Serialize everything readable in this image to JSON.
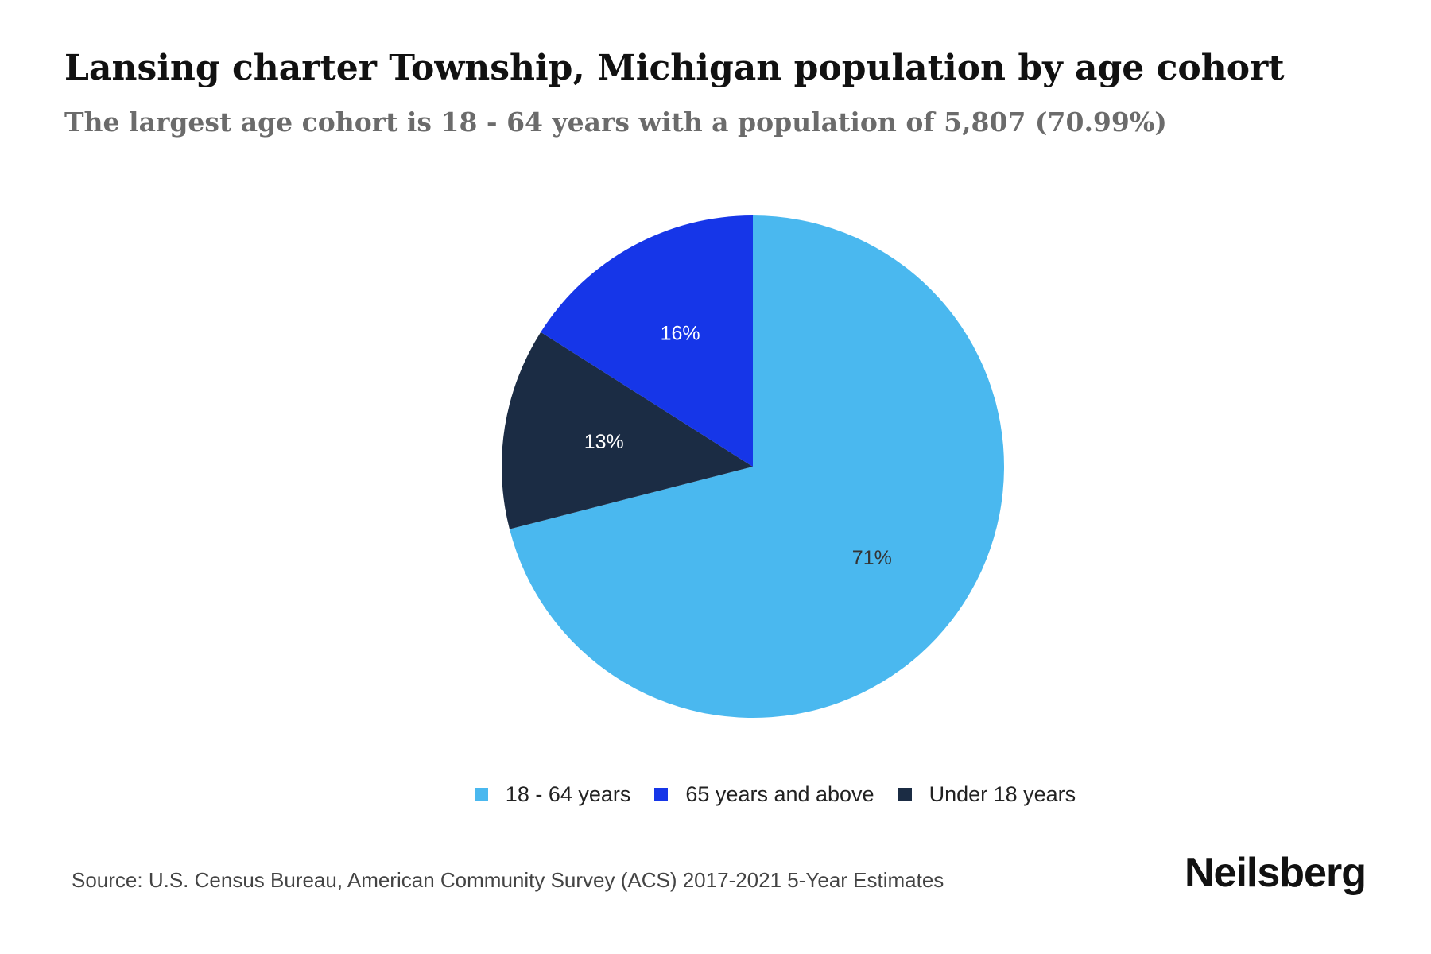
{
  "chart_data": {
    "type": "pie",
    "title": "Lansing charter Township, Michigan population by age cohort",
    "subtitle": "The largest age cohort is 18 - 64 years with a population of 5,807 (70.99%)",
    "slices": [
      {
        "label": "18 - 64 years",
        "value": 70.99,
        "display": "71%",
        "color": "#4ab8ef",
        "label_color": "#333333"
      },
      {
        "label": "Under 18 years",
        "value": 13,
        "display": "13%",
        "color": "#1b2c44",
        "label_color": "#ffffff"
      },
      {
        "label": "65 years and above",
        "value": 16,
        "display": "16%",
        "color": "#1636e8",
        "label_color": "#ffffff"
      }
    ],
    "legend": [
      {
        "label": "18 - 64 years",
        "color": "#4ab8ef"
      },
      {
        "label": "65 years and above",
        "color": "#1636e8"
      },
      {
        "label": "Under 18 years",
        "color": "#1b2c44"
      }
    ],
    "legend_position": "bottom"
  },
  "source": "Source: U.S. Census Bureau, American Community Survey (ACS) 2017-2021 5-Year Estimates",
  "brand": "Neilsberg"
}
